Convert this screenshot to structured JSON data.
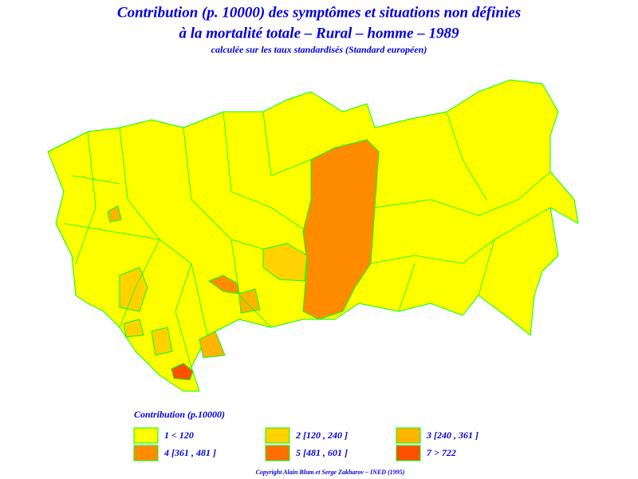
{
  "header": {
    "title_line1": "Contribution (p. 10000) des symptômes et situations non définies",
    "title_line2": "à la mortalité totale  –  Rural  –  homme  –  1989",
    "subtitle": "calculée sur les taux standardisés (Standard européen)"
  },
  "legend": {
    "title": "Contribution  (p.10000)",
    "entries": [
      {
        "label": "1  <  120",
        "color": "#ffff00"
      },
      {
        "label": "2  [120  ,  240  ]",
        "color": "#ffd200"
      },
      {
        "label": "3  [240  ,  361  ]",
        "color": "#ffb400"
      },
      {
        "label": "4  [361  ,  481  ]",
        "color": "#ff8c00"
      },
      {
        "label": "5  [481  ,  601  ]",
        "color": "#ff6e00"
      },
      {
        "label": "7  >  722",
        "color": "#ff5000"
      }
    ]
  },
  "footer": {
    "copyright": "Copyright  Alain  Blum  et  Serge  Zakharov  –  INED  (1995)"
  }
}
